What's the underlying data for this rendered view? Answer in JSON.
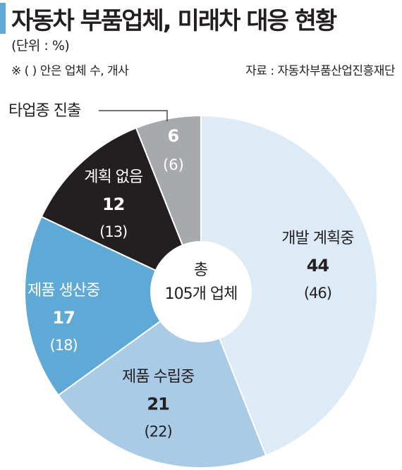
{
  "header": {
    "title": "자동차 부품업체, 미래차 대응 현황",
    "unit": "(단위 : %)",
    "note": "※ (   ) 안은 업체 수, 개사",
    "source": "자료 : 자동차부품산업진흥재단"
  },
  "center": {
    "line1": "총",
    "line2": "105개 업체"
  },
  "chart_data": {
    "type": "pie",
    "center_label": "총 105개 업체",
    "slices": [
      {
        "label": "개발 계획중",
        "percent": 44,
        "count": 46,
        "color": "#dcebf5",
        "text_color": "#231f20",
        "pct_label": "44",
        "count_label": "(46)"
      },
      {
        "label": "제품 수립중",
        "percent": 21,
        "count": 22,
        "color": "#a9cbe6",
        "text_color": "#231f20",
        "pct_label": "21",
        "count_label": "(22)"
      },
      {
        "label": "제품 생산중",
        "percent": 17,
        "count": 18,
        "color": "#5ea9d6",
        "text_color": "#ffffff",
        "pct_label": "17",
        "count_label": "(18)"
      },
      {
        "label": "계획 없음",
        "percent": 12,
        "count": 13,
        "color": "#231f20",
        "text_color": "#ffffff",
        "pct_label": "12",
        "count_label": "(13)"
      },
      {
        "label": "타업종 진출",
        "percent": 6,
        "count": 6,
        "color": "#a7a9ac",
        "text_color": "#ffffff",
        "pct_label": "6",
        "count_label": "(6)"
      }
    ]
  }
}
